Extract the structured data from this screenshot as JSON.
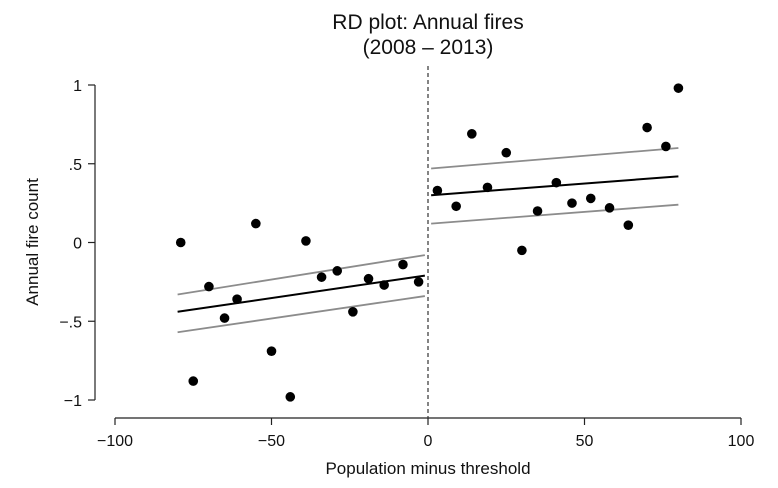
{
  "chart_data": {
    "type": "scatter",
    "title": "RD plot: Annual fires",
    "subtitle": "(2008 – 2013)",
    "xlabel": "Population minus threshold",
    "ylabel": "Annual fire count",
    "xlim": [
      -100,
      100
    ],
    "ylim": [
      -1,
      1
    ],
    "xticks": [
      {
        "value": -100,
        "label": "−100"
      },
      {
        "value": -50,
        "label": "−50"
      },
      {
        "value": 0,
        "label": "0"
      },
      {
        "value": 50,
        "label": "50"
      },
      {
        "value": 100,
        "label": "100"
      }
    ],
    "yticks": [
      {
        "value": 1,
        "label": "1"
      },
      {
        "value": 0.5,
        "label": ".5"
      },
      {
        "value": 0,
        "label": "0"
      },
      {
        "value": -0.5,
        "label": "−.5"
      },
      {
        "value": -1,
        "label": "−1"
      }
    ],
    "grid": false,
    "cutoff": 0,
    "points": [
      {
        "x": -79,
        "y": 0.0
      },
      {
        "x": -75,
        "y": -0.88
      },
      {
        "x": -70,
        "y": -0.28
      },
      {
        "x": -65,
        "y": -0.48
      },
      {
        "x": -61,
        "y": -0.36
      },
      {
        "x": -55,
        "y": 0.12
      },
      {
        "x": -50,
        "y": -0.69
      },
      {
        "x": -44,
        "y": -0.98
      },
      {
        "x": -39,
        "y": 0.01
      },
      {
        "x": -34,
        "y": -0.22
      },
      {
        "x": -29,
        "y": -0.18
      },
      {
        "x": -24,
        "y": -0.44
      },
      {
        "x": -19,
        "y": -0.23
      },
      {
        "x": -14,
        "y": -0.27
      },
      {
        "x": -8,
        "y": -0.14
      },
      {
        "x": -3,
        "y": -0.25
      },
      {
        "x": 3,
        "y": 0.33
      },
      {
        "x": 9,
        "y": 0.23
      },
      {
        "x": 14,
        "y": 0.69
      },
      {
        "x": 19,
        "y": 0.35
      },
      {
        "x": 25,
        "y": 0.57
      },
      {
        "x": 30,
        "y": -0.05
      },
      {
        "x": 35,
        "y": 0.2
      },
      {
        "x": 41,
        "y": 0.38
      },
      {
        "x": 46,
        "y": 0.25
      },
      {
        "x": 52,
        "y": 0.28
      },
      {
        "x": 58,
        "y": 0.22
      },
      {
        "x": 64,
        "y": 0.11
      },
      {
        "x": 70,
        "y": 0.73
      },
      {
        "x": 76,
        "y": 0.61
      },
      {
        "x": 80,
        "y": 0.98
      }
    ],
    "fits": [
      {
        "side": "left",
        "x": [
          -80,
          -1
        ],
        "y": [
          -0.44,
          -0.21
        ],
        "ci_lower": [
          -0.57,
          -0.34
        ],
        "ci_upper": [
          -0.33,
          -0.08
        ]
      },
      {
        "side": "right",
        "x": [
          1,
          80
        ],
        "y": [
          0.3,
          0.42
        ],
        "ci_lower": [
          0.12,
          0.24
        ],
        "ci_upper": [
          0.47,
          0.6
        ]
      }
    ],
    "colors": {
      "points": "#000000",
      "fit": "#000000",
      "ci": "#8c8c8c",
      "axis": "#222222",
      "cutoff": "#333333"
    }
  }
}
